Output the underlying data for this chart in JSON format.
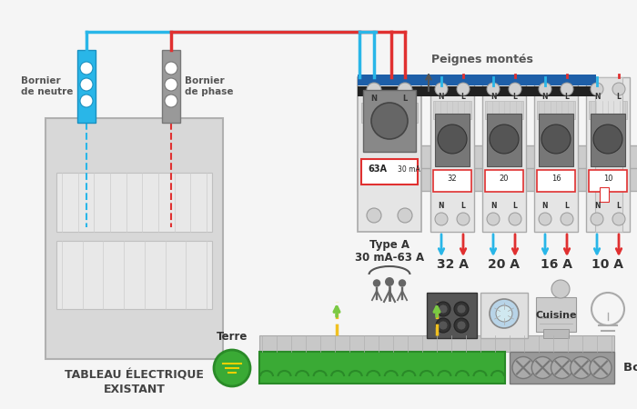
{
  "bg_color": "#f8f8f8",
  "wire_blue": "#29b6e8",
  "wire_red": "#e03030",
  "wire_green": "#7ac943",
  "wire_yellow": "#f0c020",
  "blue_bar": "#1e5fa8",
  "black_bar": "#222222",
  "green_terminal": "#3aaa35",
  "gray_rail": "#c8c8c8",
  "tableau_label": "TABLEAU ÉLECTRIQUE\nEXISTANT",
  "peignes_label": "Peignes montés",
  "terre_label": "Terre",
  "bornier_terre_label": "Bornier de terre",
  "type_a_label1": "Type A",
  "type_a_label2": "30 mA-63 A",
  "circuit_labels": [
    "32 A",
    "20 A",
    "16 A",
    "10 A"
  ],
  "circuit_sublabel": [
    "",
    "",
    "Cuisine",
    ""
  ],
  "bornier_neutre_label": "Bornier\nde neutre",
  "bornier_phase_label": "Bornier\nde phase"
}
